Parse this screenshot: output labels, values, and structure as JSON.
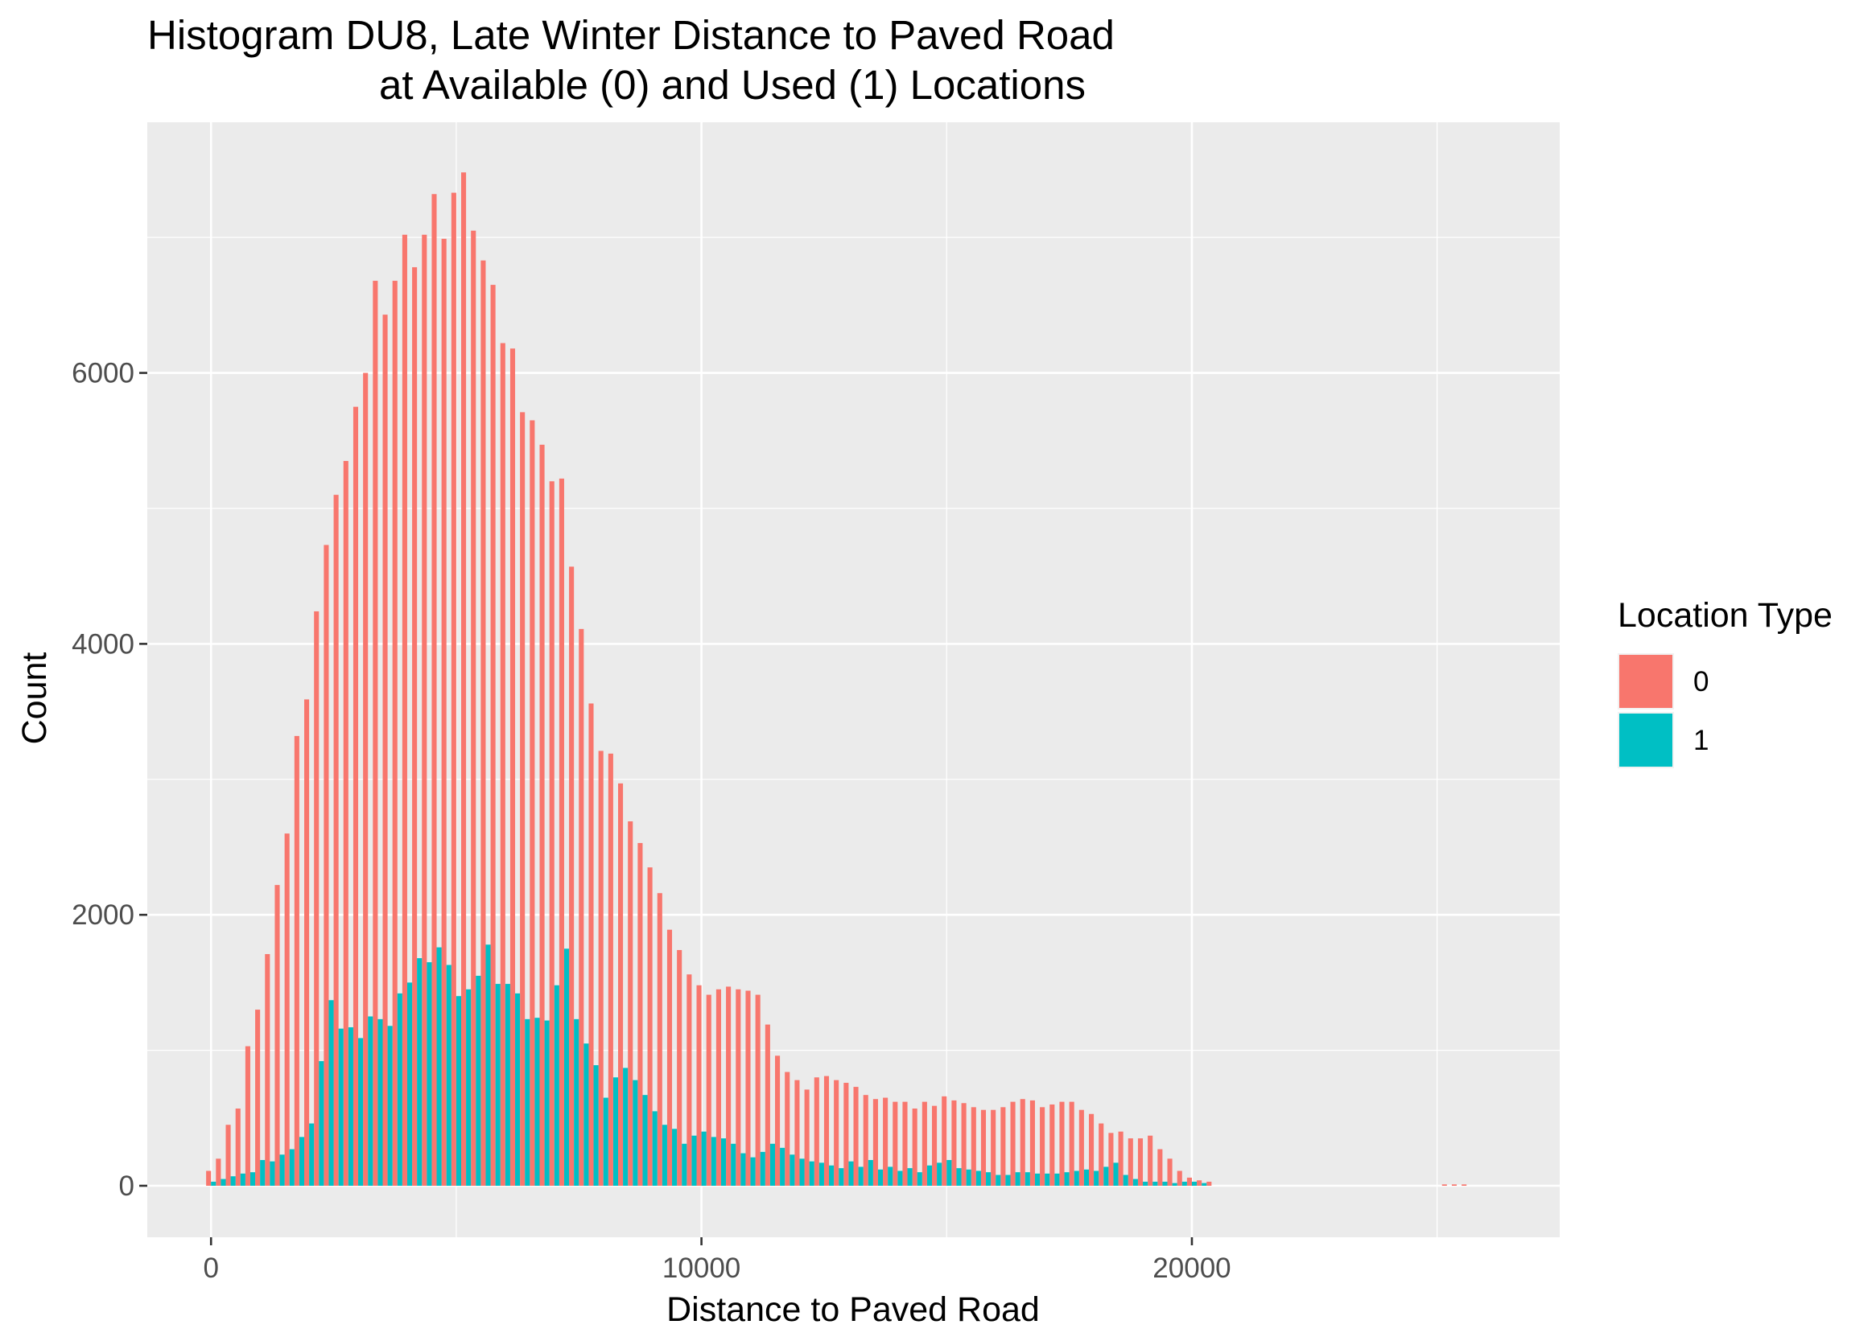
{
  "chart_data": {
    "type": "bar",
    "title": "Histogram DU8, Late Winter Distance to Paved Road",
    "subtitle": "at Available (0) and Used (1) Locations",
    "xlabel": "Distance to Paved Road",
    "ylabel": "Count",
    "xlim": [
      -1300,
      27500
    ],
    "ylim": [
      -380,
      7850
    ],
    "x_ticks": [
      {
        "value": 0,
        "label": "0"
      },
      {
        "value": 10000,
        "label": "10000"
      },
      {
        "value": 20000,
        "label": "20000"
      }
    ],
    "y_ticks": [
      {
        "value": 0,
        "label": "0"
      },
      {
        "value": 2000,
        "label": "2000"
      },
      {
        "value": 4000,
        "label": "4000"
      },
      {
        "value": 6000,
        "label": "6000"
      }
    ],
    "bin_start": -100,
    "bin_width": 200,
    "grid": true,
    "legend": {
      "title": "Location Type",
      "position": "right",
      "entries": [
        {
          "label": "0",
          "color": "#F8766D"
        },
        {
          "label": "1",
          "color": "#00BFC4"
        }
      ]
    },
    "series": [
      {
        "name": "0",
        "color": "#F8766D",
        "values": [
          110,
          200,
          450,
          570,
          1030,
          1300,
          1710,
          2220,
          2600,
          3320,
          3590,
          4240,
          4730,
          5100,
          5350,
          5750,
          6000,
          6680,
          6430,
          6680,
          7020,
          6780,
          7020,
          7320,
          6990,
          7330,
          7480,
          7050,
          6830,
          6650,
          6220,
          6180,
          5710,
          5650,
          5470,
          5200,
          5220,
          4570,
          4110,
          3560,
          3210,
          3190,
          2970,
          2690,
          2530,
          2350,
          2160,
          1890,
          1740,
          1560,
          1480,
          1410,
          1450,
          1470,
          1450,
          1440,
          1410,
          1190,
          960,
          840,
          780,
          710,
          800,
          810,
          780,
          760,
          730,
          670,
          640,
          650,
          620,
          620,
          570,
          620,
          590,
          660,
          630,
          610,
          580,
          560,
          560,
          580,
          620,
          640,
          630,
          580,
          600,
          620,
          620,
          560,
          530,
          460,
          390,
          400,
          350,
          350,
          370,
          270,
          200,
          110,
          60,
          40,
          30,
          0,
          0,
          0,
          0,
          0,
          0,
          0,
          0,
          0,
          0,
          0,
          0,
          0,
          0,
          0,
          0,
          0,
          0,
          0,
          0,
          0,
          0,
          0,
          10,
          10,
          10
        ]
      },
      {
        "name": "1",
        "color": "#00BFC4",
        "values": [
          30,
          50,
          70,
          90,
          100,
          190,
          180,
          230,
          270,
          360,
          460,
          920,
          1370,
          1160,
          1170,
          1090,
          1250,
          1230,
          1180,
          1420,
          1500,
          1680,
          1650,
          1760,
          1630,
          1400,
          1450,
          1550,
          1780,
          1490,
          1490,
          1420,
          1230,
          1240,
          1220,
          1480,
          1750,
          1230,
          1050,
          890,
          650,
          800,
          870,
          780,
          670,
          550,
          450,
          420,
          310,
          370,
          400,
          360,
          350,
          310,
          240,
          210,
          250,
          310,
          280,
          230,
          200,
          180,
          170,
          150,
          130,
          180,
          140,
          190,
          120,
          140,
          110,
          130,
          100,
          150,
          170,
          190,
          130,
          120,
          110,
          100,
          80,
          80,
          100,
          100,
          90,
          90,
          90,
          100,
          110,
          120,
          110,
          140,
          170,
          80,
          50,
          30,
          30,
          30,
          20,
          30,
          30,
          20
        ]
      }
    ]
  }
}
